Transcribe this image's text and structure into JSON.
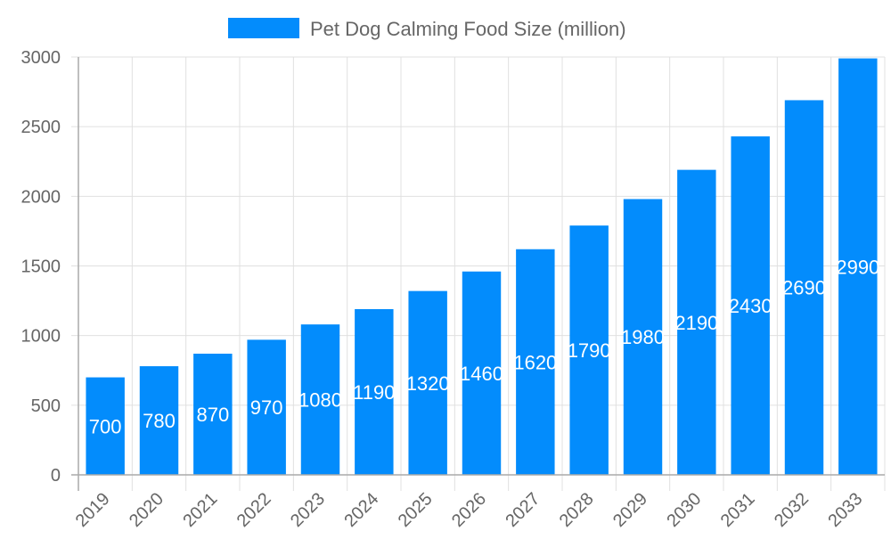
{
  "chart_data": {
    "type": "bar",
    "categories": [
      "2019",
      "2020",
      "2021",
      "2022",
      "2023",
      "2024",
      "2025",
      "2026",
      "2027",
      "2028",
      "2029",
      "2030",
      "2031",
      "2032",
      "2033"
    ],
    "series": [
      {
        "name": "Pet Dog Calming Food Size (million)",
        "values": [
          700,
          780,
          870,
          970,
          1080,
          1190,
          1320,
          1460,
          1620,
          1790,
          1980,
          2190,
          2430,
          2690,
          2990
        ],
        "color": "#038cfc"
      }
    ],
    "ylim": [
      0,
      3000
    ],
    "yticks": [
      0,
      500,
      1000,
      1500,
      2000,
      2500,
      3000
    ],
    "grid": true,
    "legend": "top-center",
    "data_labels": "inside-center"
  }
}
